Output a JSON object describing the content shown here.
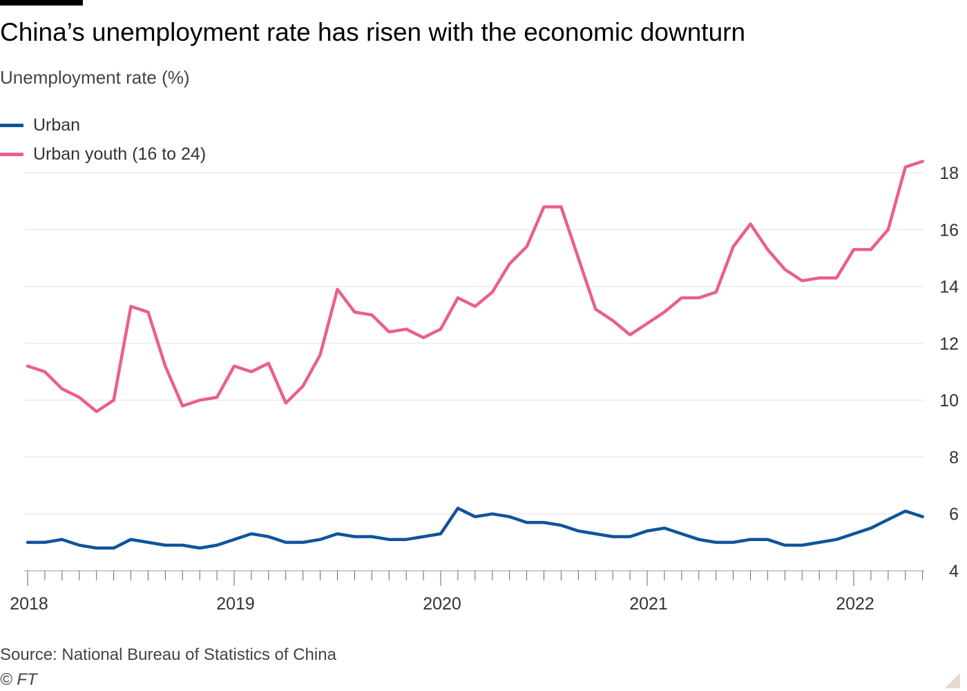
{
  "header": {
    "title": "China’s unemployment rate has risen with the economic downturn",
    "subtitle": "Unemployment rate (%)"
  },
  "legend": {
    "items": [
      {
        "label": "Urban",
        "color": "#0f5499"
      },
      {
        "label": "Urban youth (16 to 24)",
        "color": "#eb5e8d"
      }
    ]
  },
  "footer": {
    "source": "Source: National Bureau of Statistics of China",
    "credit": "© FT"
  },
  "chart_data": {
    "type": "line",
    "title": "China’s unemployment rate has risen with the economic downturn",
    "ylabel": "Unemployment rate (%)",
    "xlabel": "",
    "x_start": "2018-01",
    "x_end": "2022-05",
    "x_frequency": "monthly",
    "x_ticks": [
      "2018",
      "2019",
      "2020",
      "2021",
      "2022"
    ],
    "ylim": [
      4,
      18
    ],
    "y_ticks": [
      4,
      6,
      8,
      10,
      12,
      14,
      16,
      18
    ],
    "y_axis_side": "right",
    "grid": true,
    "legend_position": "top-left",
    "series": [
      {
        "name": "Urban",
        "color": "#0f5499",
        "values": [
          5.0,
          5.0,
          5.1,
          4.9,
          4.8,
          4.8,
          5.1,
          5.0,
          4.9,
          4.9,
          4.8,
          4.9,
          5.1,
          5.3,
          5.2,
          5.0,
          5.0,
          5.1,
          5.3,
          5.2,
          5.2,
          5.1,
          5.1,
          5.2,
          5.3,
          6.2,
          5.9,
          6.0,
          5.9,
          5.7,
          5.7,
          5.6,
          5.4,
          5.3,
          5.2,
          5.2,
          5.4,
          5.5,
          5.3,
          5.1,
          5.0,
          5.0,
          5.1,
          5.1,
          4.9,
          4.9,
          5.0,
          5.1,
          5.3,
          5.5,
          5.8,
          6.1,
          5.9
        ]
      },
      {
        "name": "Urban youth (16 to 24)",
        "color": "#eb5e8d",
        "values": [
          11.2,
          11.0,
          10.4,
          10.1,
          9.6,
          10.0,
          13.3,
          13.1,
          11.2,
          9.8,
          10.0,
          10.1,
          11.2,
          11.0,
          11.3,
          9.9,
          10.5,
          11.6,
          13.9,
          13.1,
          13.0,
          12.4,
          12.5,
          12.2,
          12.5,
          13.6,
          13.3,
          13.8,
          14.8,
          15.4,
          16.8,
          16.8,
          15.0,
          13.2,
          12.8,
          12.3,
          12.7,
          13.1,
          13.6,
          13.6,
          13.8,
          15.4,
          16.2,
          15.3,
          14.6,
          14.2,
          14.3,
          14.3,
          15.3,
          15.3,
          16.0,
          18.2,
          18.4
        ]
      }
    ]
  }
}
